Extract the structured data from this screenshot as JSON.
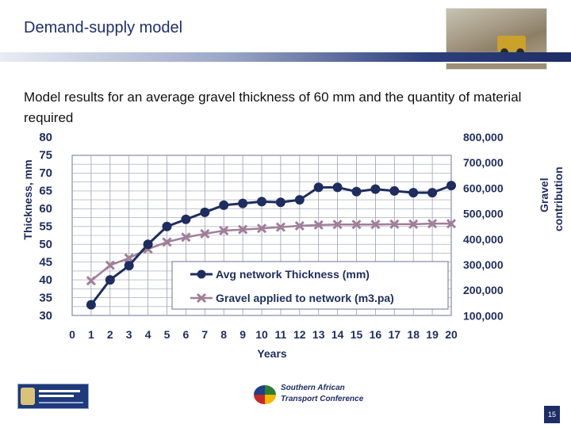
{
  "slide": {
    "title": "Demand-supply model",
    "subtitle": "Model results for an average gravel thickness of 60 mm and the quantity of material required",
    "page_number": "15"
  },
  "footer": {
    "left_logo_name": "western-cape-government-logo",
    "center_logo_line1": "Southern African",
    "center_logo_line2": "Transport Conference"
  },
  "colors": {
    "title": "#1f2f6b",
    "thickness_series": "#1e2d5e",
    "gravel_series": "#a07f98",
    "grid": "#9aa0b4"
  },
  "chart_data": {
    "type": "line",
    "xlabel": "Years",
    "ylabel_left": "Thickness, mm",
    "ylabel_right": "Gravel contribution",
    "x": [
      1,
      2,
      3,
      4,
      5,
      6,
      7,
      8,
      9,
      10,
      11,
      12,
      13,
      14,
      15,
      16,
      17,
      18,
      19,
      20
    ],
    "xlim": [
      0,
      20
    ],
    "xticks": [
      "0",
      "1",
      "2",
      "3",
      "4",
      "5",
      "6",
      "7",
      "8",
      "9",
      "10",
      "11",
      "12",
      "13",
      "14",
      "15",
      "16",
      "17",
      "18",
      "19",
      "20"
    ],
    "ylim_left": [
      30,
      80
    ],
    "yticks_left": [
      "80",
      "75",
      "70",
      "65",
      "60",
      "55",
      "50",
      "45",
      "40",
      "35",
      "30"
    ],
    "ylim_right": [
      100000,
      800000
    ],
    "yticks_right": [
      "800,000",
      "700,000",
      "600,000",
      "500,000",
      "400,000",
      "300,000",
      "200,000",
      "100,000"
    ],
    "grid": true,
    "legend_position": "inside-bottom-center",
    "series": [
      {
        "name": "Avg network Thickness (mm)",
        "axis": "left",
        "marker": "circle",
        "values": [
          33,
          40,
          44,
          50,
          55,
          57,
          59,
          61,
          61.5,
          62,
          61.8,
          62.5,
          66,
          66,
          64.8,
          65.5,
          65,
          64.5,
          64.5,
          66.5
        ]
      },
      {
        "name": "Gravel applied to network (m3.pa)",
        "axis": "right",
        "marker": "x",
        "values": [
          230000,
          288000,
          315000,
          349000,
          375000,
          393000,
          406000,
          418000,
          422000,
          426000,
          431000,
          436000,
          439000,
          441000,
          441000,
          441000,
          442000,
          442000,
          444000,
          444000
        ]
      }
    ]
  }
}
